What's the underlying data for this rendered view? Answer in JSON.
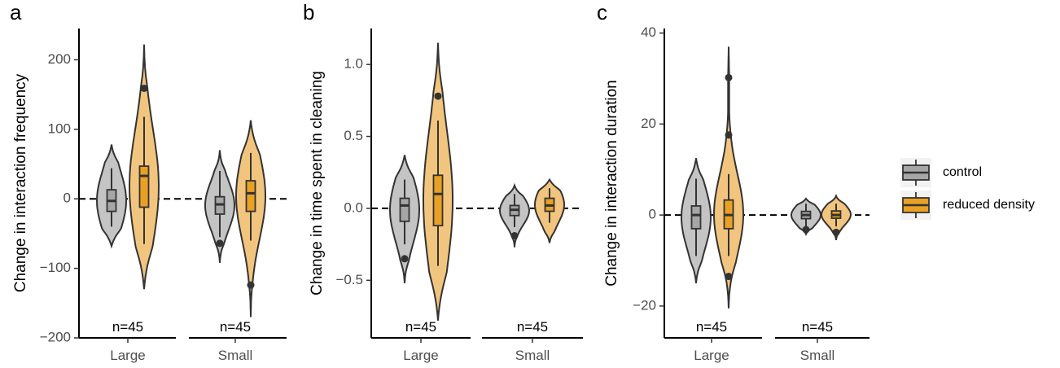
{
  "colors": {
    "control": "#a6a6a6",
    "reduced": "#e8a125",
    "control_violin": "#c4c4c4",
    "reduced_violin": "#f2c57e",
    "ink": "#333333"
  },
  "legend": {
    "items": [
      {
        "label": "control",
        "color": "#a6a6a6"
      },
      {
        "label": "reduced density",
        "color": "#e8a125"
      }
    ]
  },
  "chart_data": [
    {
      "panel": "a",
      "type": "violin",
      "ylabel": "Change in interaction frequency",
      "categories": [
        "Large",
        "Small"
      ],
      "ylim": [
        -200,
        245
      ],
      "yticks": [
        -200,
        -100,
        0,
        100,
        200
      ],
      "ytick_labels": [
        "−200",
        "−100",
        "0",
        "100",
        "200"
      ],
      "reference_line": 0,
      "annotations": [
        "n=45",
        "n=45"
      ],
      "groups": [
        {
          "category": "Large",
          "series": "control",
          "min": -68,
          "max": 78,
          "q1": -18,
          "median": -3,
          "q3": 13,
          "whisker_low": -40,
          "whisker_high": 44,
          "outliers": []
        },
        {
          "category": "Large",
          "series": "reduced density",
          "min": -130,
          "max": 222,
          "q1": -12,
          "median": 33,
          "q3": 47,
          "whisker_low": -65,
          "whisker_high": 118,
          "outliers": [
            159
          ]
        },
        {
          "category": "Small",
          "series": "control",
          "min": -92,
          "max": 70,
          "q1": -22,
          "median": -8,
          "q3": 3,
          "whisker_low": -55,
          "whisker_high": 40,
          "outliers": [
            -64
          ]
        },
        {
          "category": "Small",
          "series": "reduced density",
          "min": -170,
          "max": 113,
          "q1": -18,
          "median": 8,
          "q3": 26,
          "whisker_low": -60,
          "whisker_high": 66,
          "outliers": [
            -124
          ]
        }
      ]
    },
    {
      "panel": "b",
      "type": "violin",
      "ylabel": "Change in time spent in cleaning",
      "categories": [
        "Large",
        "Small"
      ],
      "ylim": [
        -0.9,
        1.25
      ],
      "yticks": [
        -0.5,
        0.0,
        0.5,
        1.0
      ],
      "ytick_labels": [
        "−0.5",
        "0.0",
        "0.5",
        "1.0"
      ],
      "reference_line": 0,
      "annotations": [
        "n=45",
        "n=45"
      ],
      "groups": [
        {
          "category": "Large",
          "series": "control",
          "min": -0.52,
          "max": 0.37,
          "q1": -0.09,
          "median": 0.02,
          "q3": 0.07,
          "whisker_low": -0.25,
          "whisker_high": 0.2,
          "outliers": [
            -0.35
          ]
        },
        {
          "category": "Large",
          "series": "reduced density",
          "min": -0.78,
          "max": 1.15,
          "q1": -0.12,
          "median": 0.1,
          "q3": 0.23,
          "whisker_low": -0.4,
          "whisker_high": 0.61,
          "outliers": [
            0.78
          ]
        },
        {
          "category": "Small",
          "series": "control",
          "min": -0.27,
          "max": 0.16,
          "q1": -0.05,
          "median": -0.01,
          "q3": 0.02,
          "whisker_low": -0.13,
          "whisker_high": 0.1,
          "outliers": [
            -0.19
          ]
        },
        {
          "category": "Small",
          "series": "reduced density",
          "min": -0.24,
          "max": 0.2,
          "q1": -0.02,
          "median": 0.02,
          "q3": 0.07,
          "whisker_low": -0.1,
          "whisker_high": 0.14,
          "outliers": []
        }
      ]
    },
    {
      "panel": "c",
      "type": "violin",
      "ylabel": "Change in interaction duration",
      "categories": [
        "Large",
        "Small"
      ],
      "ylim": [
        -27,
        41
      ],
      "yticks": [
        -20,
        0,
        20,
        40
      ],
      "ytick_labels": [
        "−20",
        "0",
        "20",
        "40"
      ],
      "reference_line": 0,
      "annotations": [
        "n=45",
        "n=45"
      ],
      "groups": [
        {
          "category": "Large",
          "series": "control",
          "min": -15,
          "max": 12.5,
          "q1": -3,
          "median": 0,
          "q3": 2,
          "whisker_low": -9,
          "whisker_high": 8,
          "outliers": []
        },
        {
          "category": "Large",
          "series": "reduced density",
          "min": -20.5,
          "max": 37,
          "q1": -3,
          "median": 0,
          "q3": 3.3,
          "whisker_low": -9,
          "whisker_high": 9,
          "outliers": [
            -13.5,
            17.6,
            30.2
          ]
        },
        {
          "category": "Small",
          "series": "control",
          "min": -4.2,
          "max": 3.6,
          "q1": -0.8,
          "median": 0,
          "q3": 0.8,
          "whisker_low": -2.5,
          "whisker_high": 2.5,
          "outliers": [
            -3.2
          ]
        },
        {
          "category": "Small",
          "series": "reduced density",
          "min": -5.5,
          "max": 4.2,
          "q1": -0.7,
          "median": 0,
          "q3": 0.9,
          "whisker_low": -2.5,
          "whisker_high": 2.5,
          "outliers": [
            -3.8
          ]
        }
      ]
    }
  ]
}
